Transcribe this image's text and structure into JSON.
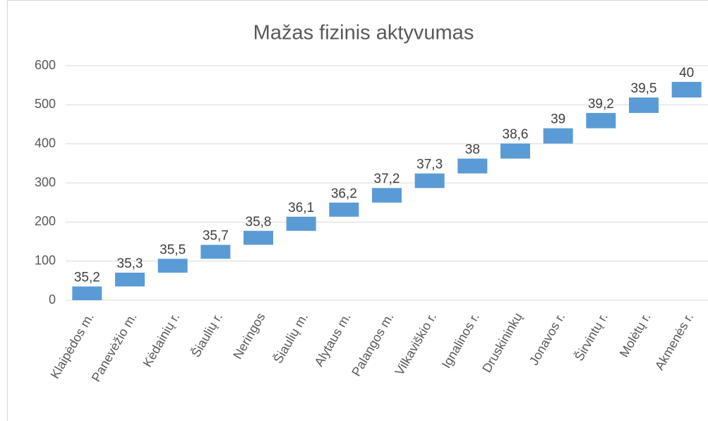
{
  "chart_data": {
    "type": "waterfall",
    "title": "Mažas fizinis aktyvumas",
    "categories": [
      "Klaipėdos m.",
      "Panevėžio m.",
      "Kėdainių r.",
      "Šiaulių r.",
      "Neringos",
      "Šiaulių m.",
      "Alytaus m.",
      "Palangos m.",
      "Vilkaviškio r.",
      "Ignalinos r.",
      "Druskininkų",
      "Jonavos r.",
      "Širvintų r.",
      "Molėtų r.",
      "Akmenės r."
    ],
    "values": [
      35.2,
      35.3,
      35.5,
      35.7,
      35.8,
      36.1,
      36.2,
      37.2,
      37.3,
      38,
      38.6,
      39,
      39.2,
      39.5,
      40
    ],
    "value_labels": [
      "35,2",
      "35,3",
      "35,5",
      "35,7",
      "35,8",
      "36,1",
      "36,2",
      "37,2",
      "37,3",
      "38",
      "38,6",
      "39",
      "39,2",
      "39,5",
      "40"
    ],
    "color": "#5b9bd5",
    "ylim": [
      0,
      600
    ],
    "yticks": [
      0,
      100,
      200,
      300,
      400,
      500,
      600
    ],
    "grid": true
  }
}
